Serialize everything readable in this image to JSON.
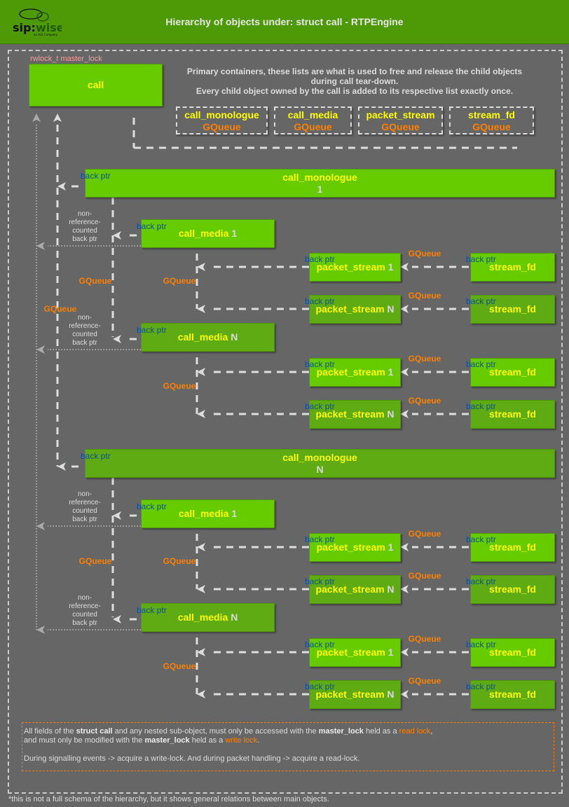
{
  "header": {
    "title": "Hierarchy of objects under: struct call - RTPEngine",
    "logo_text": "sip:wise",
    "logo_tagline": "an ALE Company",
    "background": "#4e9a06"
  },
  "call": {
    "lock_label": "rwlock_t master_lock",
    "label": "call"
  },
  "primary_text": [
    "Primary containers, these lists are what is used to free and release the child objects",
    "during call tear-down.",
    "Every child object owned by the call is added to its respective list exactly once."
  ],
  "containers": [
    {
      "name": "call_monologue",
      "type": "GQueue"
    },
    {
      "name": "call_media",
      "type": "GQueue"
    },
    {
      "name": "packet_stream",
      "type": "GQueue"
    },
    {
      "name": "stream_fd",
      "type": "GQueue"
    }
  ],
  "labels": {
    "back_ptr": "back ptr",
    "gqueue": "GQueue",
    "non_ref": [
      "non-",
      "reference-",
      "counted",
      "back ptr"
    ]
  },
  "monologues": [
    {
      "label": "call_monologue",
      "index": "1",
      "medias": [
        {
          "label": "call_media",
          "index": "1",
          "streams": [
            {
              "label": "packet_stream",
              "index": "1",
              "fd": "stream_fd"
            },
            {
              "label": "packet_stream",
              "index": "N",
              "fd": "stream_fd"
            }
          ]
        },
        {
          "label": "call_media",
          "index": "N",
          "streams": [
            {
              "label": "packet_stream",
              "index": "1",
              "fd": "stream_fd"
            },
            {
              "label": "packet_stream",
              "index": "N",
              "fd": "stream_fd"
            }
          ]
        }
      ]
    },
    {
      "label": "call_monologue",
      "index": "N",
      "medias": [
        {
          "label": "call_media",
          "index": "1",
          "streams": [
            {
              "label": "packet_stream",
              "index": "1",
              "fd": "stream_fd"
            },
            {
              "label": "packet_stream",
              "index": "N",
              "fd": "stream_fd"
            }
          ]
        },
        {
          "label": "call_media",
          "index": "N",
          "streams": [
            {
              "label": "packet_stream",
              "index": "1",
              "fd": "stream_fd"
            },
            {
              "label": "packet_stream",
              "index": "N",
              "fd": "stream_fd"
            }
          ]
        }
      ]
    }
  ],
  "note": {
    "line1": {
      "t1": "All fields of the ",
      "b1": "struct call",
      "t2": " and any nested sub-object, must only be accessed with the ",
      "b2": "master_lock",
      "t3": " held as a ",
      "o": "read lock",
      "t4": ","
    },
    "line2": {
      "t1": "and must only be modified with the ",
      "b1": "master_lock",
      "t2": " held as a ",
      "o": "write lock",
      "t3": "."
    },
    "line3": "During signalling events -> acquire a write-lock. And during packet handling -> acquire a read-lock."
  },
  "footnote": "*this is not a full schema of the hierarchy, but it shows general relations between main objects.",
  "colors": {
    "box_green": "#66cc00",
    "box_green_dark": "#5fab14",
    "label_yellow": "#ffff00",
    "gqueue_orange": "#ff8000",
    "back_ptr_blue": "#0b4fa0",
    "background": "#666666"
  }
}
